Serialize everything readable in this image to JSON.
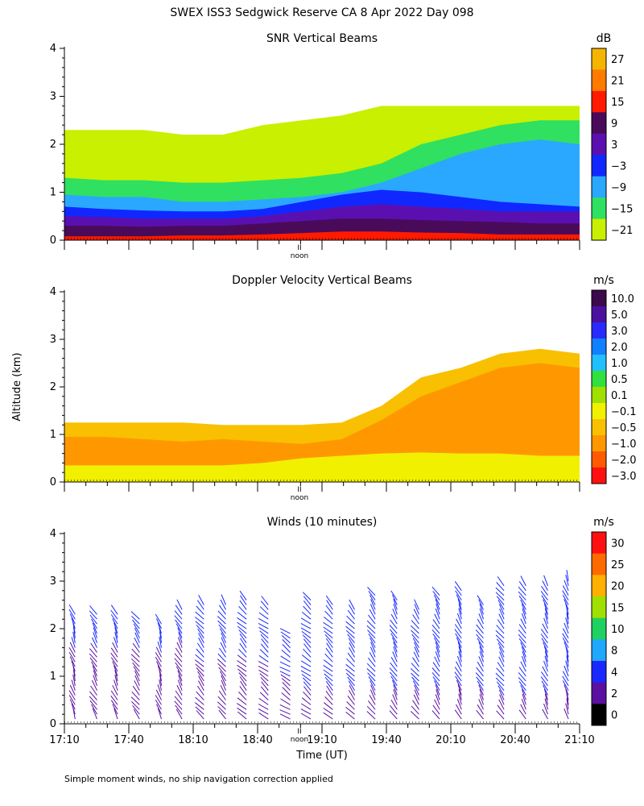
{
  "main_title": "SWEX ISS3 Sedgwick Reserve CA   8 Apr 2022 Day 098",
  "y_label": "Altitude (km)",
  "x_label": "Time (UT)",
  "footer_note": "Simple moment winds, no ship navigation correction applied",
  "noon_label": "noon",
  "noon_marker": "II",
  "x_tick_labels": [
    "17:10",
    "17:40",
    "18:10",
    "18:40",
    "19:10",
    "19:40",
    "20:10",
    "20:40",
    "21:10"
  ],
  "chart_data": [
    {
      "type": "heatmap",
      "title": "SNR Vertical Beams",
      "x_range_hours": [
        17.1667,
        21.1667
      ],
      "ylim": [
        0,
        4
      ],
      "y_ticks": [
        "0",
        "1",
        "2",
        "3",
        "4"
      ],
      "colorbar": {
        "unit": "dB",
        "labels": [
          "27",
          "21",
          "15",
          "9",
          "3",
          "−3",
          "−9",
          "−15",
          "−21"
        ],
        "colors": [
          "#f4b400",
          "#ff7a00",
          "#ff1a00",
          "#4a0a5a",
          "#5a10b0",
          "#1028ff",
          "#2aa8ff",
          "#30e060",
          "#c8f000"
        ]
      },
      "layers": [
        {
          "level": "−21",
          "top_km": [
            2.3,
            2.3,
            2.3,
            2.2,
            2.2,
            2.4,
            2.5,
            2.6,
            2.8,
            2.8,
            2.8,
            2.8,
            2.8,
            2.8
          ]
        },
        {
          "level": "−15",
          "top_km": [
            1.3,
            1.25,
            1.25,
            1.2,
            1.2,
            1.25,
            1.3,
            1.4,
            1.6,
            2.0,
            2.2,
            2.4,
            2.5,
            2.5
          ]
        },
        {
          "level": "−9",
          "top_km": [
            0.95,
            0.9,
            0.9,
            0.8,
            0.8,
            0.85,
            0.9,
            1.0,
            1.2,
            1.5,
            1.8,
            2.0,
            2.1,
            2.0
          ]
        },
        {
          "level": "−3",
          "top_km": [
            0.7,
            0.65,
            0.62,
            0.6,
            0.6,
            0.65,
            0.8,
            0.95,
            1.05,
            1.0,
            0.9,
            0.8,
            0.75,
            0.7
          ]
        },
        {
          "level": "3",
          "top_km": [
            0.5,
            0.48,
            0.45,
            0.45,
            0.45,
            0.5,
            0.6,
            0.7,
            0.75,
            0.7,
            0.65,
            0.6,
            0.6,
            0.6
          ]
        },
        {
          "level": "9",
          "top_km": [
            0.3,
            0.3,
            0.28,
            0.3,
            0.3,
            0.35,
            0.4,
            0.45,
            0.45,
            0.42,
            0.4,
            0.38,
            0.35,
            0.35
          ]
        },
        {
          "level": "15",
          "top_km": [
            0.08,
            0.08,
            0.08,
            0.1,
            0.1,
            0.12,
            0.15,
            0.18,
            0.18,
            0.16,
            0.15,
            0.12,
            0.12,
            0.12
          ]
        }
      ]
    },
    {
      "type": "heatmap",
      "title": "Doppler Velocity Vertical Beams",
      "x_range_hours": [
        17.1667,
        21.1667
      ],
      "ylim": [
        0,
        4
      ],
      "y_ticks": [
        "0",
        "1",
        "2",
        "3",
        "4"
      ],
      "colorbar": {
        "unit": "m/s",
        "labels": [
          "10.0",
          "5.0",
          "3.0",
          "2.0",
          "1.0",
          "0.5",
          "0.1",
          "−0.1",
          "−0.5",
          "−1.0",
          "−2.0",
          "−3.0"
        ],
        "colors": [
          "#3a0a4a",
          "#4a10a0",
          "#2a2aff",
          "#1080ff",
          "#20c0ff",
          "#30e040",
          "#a0e000",
          "#f0f000",
          "#f8c000",
          "#ff9800",
          "#ff5a00",
          "#ff1010"
        ]
      },
      "layers": [
        {
          "level": "−0.5",
          "top_km": [
            1.25,
            1.25,
            1.25,
            1.25,
            1.2,
            1.2,
            1.2,
            1.25,
            1.6,
            2.2,
            2.4,
            2.7,
            2.8,
            2.7
          ]
        },
        {
          "level": "−1.0",
          "top_km": [
            0.95,
            0.95,
            0.9,
            0.85,
            0.9,
            0.85,
            0.8,
            0.9,
            1.3,
            1.8,
            2.1,
            2.4,
            2.5,
            2.4
          ]
        },
        {
          "level": "−0.1",
          "top_km": [
            0.35,
            0.35,
            0.35,
            0.35,
            0.35,
            0.4,
            0.5,
            0.55,
            0.6,
            0.62,
            0.6,
            0.6,
            0.55,
            0.55
          ]
        }
      ]
    },
    {
      "type": "barbs",
      "title": "Winds (10 minutes)",
      "x_range_hours": [
        17.1667,
        21.1667
      ],
      "ylim": [
        0,
        4
      ],
      "y_ticks": [
        "0",
        "1",
        "2",
        "3",
        "4"
      ],
      "colorbar": {
        "unit": "m/s",
        "labels": [
          "30",
          "25",
          "20",
          "15",
          "10",
          "8",
          "4",
          "2",
          "0"
        ],
        "colors": [
          "#ff1010",
          "#ff6a00",
          "#ffb000",
          "#a0e000",
          "#20d060",
          "#20a8ff",
          "#1828ff",
          "#5a10a0",
          "#000000"
        ]
      },
      "profiles": [
        {
          "time_hours": 17.25,
          "top_km": 2.4,
          "dir_deg": 200,
          "speed_low": 2,
          "speed_high": 5
        },
        {
          "time_hours": 17.42,
          "top_km": 2.4,
          "dir_deg": 210,
          "speed_low": 2,
          "speed_high": 5
        },
        {
          "time_hours": 17.58,
          "top_km": 2.4,
          "dir_deg": 205,
          "speed_low": 2,
          "speed_high": 5
        },
        {
          "time_hours": 17.75,
          "top_km": 2.3,
          "dir_deg": 215,
          "speed_low": 2,
          "speed_high": 5
        },
        {
          "time_hours": 17.92,
          "top_km": 2.2,
          "dir_deg": 200,
          "speed_low": 2,
          "speed_high": 5
        },
        {
          "time_hours": 18.08,
          "top_km": 2.5,
          "dir_deg": 210,
          "speed_low": 2,
          "speed_high": 5
        },
        {
          "time_hours": 18.25,
          "top_km": 2.6,
          "dir_deg": 220,
          "speed_low": 2,
          "speed_high": 6
        },
        {
          "time_hours": 18.42,
          "top_km": 2.6,
          "dir_deg": 215,
          "speed_low": 2,
          "speed_high": 6
        },
        {
          "time_hours": 18.58,
          "top_km": 2.7,
          "dir_deg": 225,
          "speed_low": 2,
          "speed_high": 6
        },
        {
          "time_hours": 18.75,
          "top_km": 2.6,
          "dir_deg": 230,
          "speed_low": 2,
          "speed_high": 6
        },
        {
          "time_hours": 18.92,
          "top_km": 2.0,
          "dir_deg": 235,
          "speed_low": 2,
          "speed_high": 6
        },
        {
          "time_hours": 19.08,
          "top_km": 2.7,
          "dir_deg": 230,
          "speed_low": 3,
          "speed_high": 7
        },
        {
          "time_hours": 19.25,
          "top_km": 2.6,
          "dir_deg": 225,
          "speed_low": 3,
          "speed_high": 7
        },
        {
          "time_hours": 19.42,
          "top_km": 2.5,
          "dir_deg": 220,
          "speed_low": 3,
          "speed_high": 7
        },
        {
          "time_hours": 19.58,
          "top_km": 2.8,
          "dir_deg": 215,
          "speed_low": 3,
          "speed_high": 7
        },
        {
          "time_hours": 19.75,
          "top_km": 2.7,
          "dir_deg": 210,
          "speed_low": 3,
          "speed_high": 7
        },
        {
          "time_hours": 19.92,
          "top_km": 2.5,
          "dir_deg": 215,
          "speed_low": 3,
          "speed_high": 7
        },
        {
          "time_hours": 20.08,
          "top_km": 2.8,
          "dir_deg": 210,
          "speed_low": 3,
          "speed_high": 7
        },
        {
          "time_hours": 20.25,
          "top_km": 2.9,
          "dir_deg": 205,
          "speed_low": 3,
          "speed_high": 7
        },
        {
          "time_hours": 20.42,
          "top_km": 2.6,
          "dir_deg": 210,
          "speed_low": 3,
          "speed_high": 7
        },
        {
          "time_hours": 20.58,
          "top_km": 3.0,
          "dir_deg": 215,
          "speed_low": 3,
          "speed_high": 8
        },
        {
          "time_hours": 20.75,
          "top_km": 3.0,
          "dir_deg": 210,
          "speed_low": 3,
          "speed_high": 8
        },
        {
          "time_hours": 20.92,
          "top_km": 3.0,
          "dir_deg": 205,
          "speed_low": 3,
          "speed_high": 8
        },
        {
          "time_hours": 21.08,
          "top_km": 3.1,
          "dir_deg": 200,
          "speed_low": 3,
          "speed_high": 8
        }
      ]
    }
  ]
}
